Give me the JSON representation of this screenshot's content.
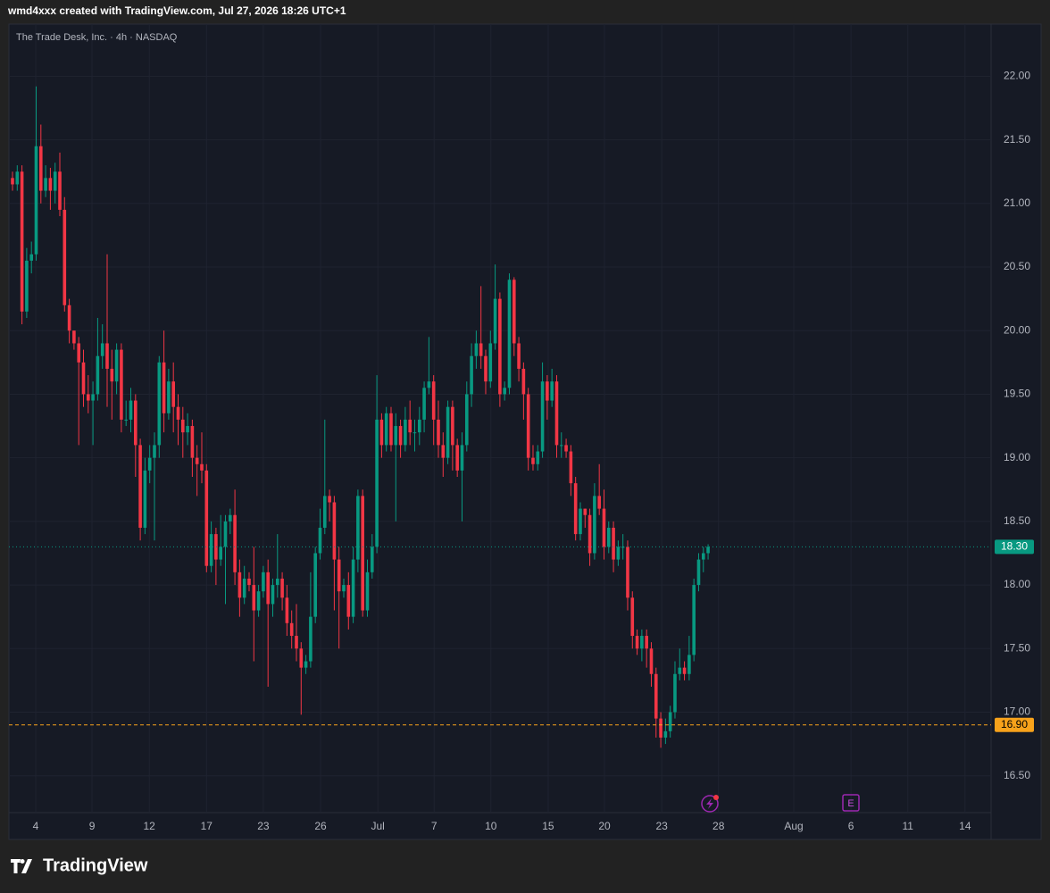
{
  "header": "wmd4xxx created with TradingView.com, Jul 27, 2026 18:26 UTC+1",
  "footer": "TradingView",
  "chart_data": {
    "type": "candlestick",
    "title": "The Trade Desk, Inc. · 4h · NASDAQ",
    "up_color": "#089981",
    "down_color": "#f23645",
    "grid": true,
    "open": [
      21.2,
      21.15,
      21.25,
      20.15,
      20.55,
      20.6,
      21.45,
      21.1,
      21.2,
      21.1,
      21.25,
      20.95,
      20.2,
      20.0,
      19.9,
      19.75,
      19.5,
      19.45,
      19.5,
      19.8,
      19.9,
      19.7,
      19.6,
      19.85,
      19.3,
      19.3,
      19.45,
      19.1,
      18.45,
      18.9,
      19.0,
      19.1,
      19.75,
      19.35,
      19.6,
      19.4,
      19.3,
      19.2,
      19.25,
      19.0,
      18.95,
      18.9,
      18.15,
      18.4,
      18.2,
      18.3,
      18.5,
      18.55,
      18.1,
      17.9,
      18.05,
      18.0,
      17.8,
      17.95,
      18.1,
      17.85,
      18.0,
      18.05,
      17.9,
      17.7,
      17.6,
      17.5,
      17.35,
      17.4,
      17.75,
      18.25,
      18.45,
      18.7,
      18.65,
      18.2,
      17.95,
      18.0,
      17.75,
      18.2,
      18.7,
      17.8,
      18.1,
      18.3,
      19.3,
      19.1,
      19.35,
      19.1,
      19.25,
      19.1,
      19.3,
      19.2,
      19.2,
      19.3,
      19.55,
      19.6,
      19.3,
      19.1,
      19.0,
      19.4,
      19.1,
      18.9,
      19.1,
      19.5,
      19.8,
      19.9,
      19.8,
      19.6,
      19.9,
      20.25,
      19.5,
      19.55,
      20.4,
      19.9,
      19.7,
      19.5,
      19.0,
      18.95,
      19.05,
      19.6,
      19.45,
      19.6,
      19.1,
      19.1,
      19.05,
      18.8,
      18.4,
      18.6,
      18.55,
      18.25,
      18.7,
      18.6,
      18.3,
      18.45,
      18.2,
      18.3,
      18.3,
      17.9,
      17.6,
      17.5,
      17.6,
      17.5,
      17.3,
      16.95,
      16.8,
      16.85,
      17.0,
      17.3,
      17.35,
      17.3,
      17.45,
      18.0,
      18.2,
      18.25
    ],
    "high": [
      21.25,
      21.3,
      21.3,
      20.65,
      20.7,
      21.92,
      21.62,
      21.3,
      21.28,
      21.32,
      21.4,
      21.05,
      20.25,
      20.0,
      19.95,
      19.85,
      19.65,
      19.6,
      20.1,
      20.05,
      20.6,
      19.85,
      19.9,
      19.9,
      19.45,
      19.55,
      19.5,
      19.15,
      19.0,
      19.1,
      19.2,
      19.8,
      20.0,
      19.7,
      19.75,
      19.5,
      19.4,
      19.35,
      19.3,
      19.1,
      19.2,
      18.95,
      18.5,
      18.45,
      18.55,
      18.55,
      18.6,
      18.75,
      18.2,
      18.15,
      18.1,
      18.3,
      18.0,
      18.15,
      18.2,
      18.05,
      18.4,
      18.1,
      18.0,
      17.8,
      17.85,
      17.55,
      17.45,
      18.1,
      18.3,
      18.6,
      19.3,
      18.75,
      18.7,
      18.3,
      18.05,
      18.1,
      18.3,
      18.75,
      18.75,
      18.2,
      18.4,
      19.65,
      19.35,
      19.4,
      19.4,
      19.35,
      19.3,
      19.4,
      19.45,
      19.3,
      19.4,
      19.6,
      19.95,
      19.65,
      19.45,
      19.2,
      19.45,
      19.45,
      19.15,
      19.2,
      19.6,
      19.9,
      20.0,
      20.35,
      19.85,
      20.0,
      20.52,
      20.3,
      19.6,
      20.45,
      20.42,
      19.95,
      19.75,
      19.55,
      19.1,
      19.1,
      19.75,
      19.65,
      19.7,
      19.65,
      19.2,
      19.15,
      19.1,
      18.85,
      18.65,
      18.6,
      18.6,
      18.8,
      18.95,
      18.75,
      18.5,
      18.5,
      18.35,
      18.4,
      18.35,
      17.95,
      17.65,
      17.65,
      17.65,
      17.55,
      17.35,
      17.0,
      16.95,
      17.05,
      17.4,
      17.5,
      17.4,
      17.6,
      18.05,
      18.25,
      18.3,
      18.32
    ],
    "low": [
      21.1,
      21.1,
      20.05,
      20.1,
      20.45,
      20.55,
      21.0,
      21.05,
      20.95,
      21.0,
      20.9,
      20.15,
      19.9,
      19.85,
      19.1,
      19.4,
      19.35,
      19.1,
      19.45,
      19.7,
      19.4,
      19.3,
      19.5,
      19.2,
      19.25,
      19.2,
      18.85,
      18.35,
      18.4,
      18.8,
      18.35,
      19.0,
      19.2,
      19.3,
      19.2,
      19.1,
      19.0,
      19.1,
      18.85,
      18.7,
      18.8,
      18.1,
      18.1,
      18.0,
      18.15,
      17.85,
      18.4,
      18.0,
      17.75,
      17.85,
      17.95,
      17.4,
      17.75,
      17.9,
      17.2,
      17.75,
      17.9,
      17.8,
      17.6,
      17.5,
      17.4,
      16.98,
      17.3,
      17.35,
      17.7,
      18.2,
      18.4,
      18.5,
      17.8,
      17.5,
      17.9,
      17.65,
      17.7,
      18.1,
      17.75,
      17.75,
      18.05,
      18.25,
      19.0,
      19.05,
      19.05,
      18.5,
      19.0,
      19.05,
      19.1,
      19.05,
      19.1,
      19.2,
      19.5,
      19.1,
      19.0,
      18.85,
      18.95,
      18.9,
      18.85,
      18.5,
      19.05,
      19.4,
      19.7,
      19.7,
      19.5,
      19.55,
      19.85,
      19.4,
      19.45,
      19.5,
      19.8,
      19.6,
      19.3,
      18.9,
      18.9,
      18.9,
      19.0,
      19.3,
      19.4,
      19.0,
      19.0,
      19.0,
      18.7,
      18.35,
      18.35,
      18.45,
      18.15,
      18.2,
      18.55,
      18.2,
      18.25,
      18.1,
      18.15,
      18.2,
      17.8,
      17.5,
      17.45,
      17.4,
      17.35,
      17.2,
      16.8,
      16.72,
      16.75,
      16.8,
      16.95,
      17.25,
      17.25,
      17.25,
      17.4,
      17.95,
      18.1,
      18.2
    ],
    "close": [
      21.15,
      21.25,
      20.15,
      20.55,
      20.6,
      21.45,
      21.1,
      21.2,
      21.1,
      21.25,
      20.95,
      20.2,
      20.0,
      19.9,
      19.75,
      19.5,
      19.45,
      19.5,
      19.8,
      19.9,
      19.7,
      19.6,
      19.85,
      19.3,
      19.3,
      19.45,
      19.1,
      18.45,
      18.9,
      19.0,
      19.1,
      19.75,
      19.35,
      19.6,
      19.4,
      19.3,
      19.2,
      19.25,
      19.0,
      18.95,
      18.9,
      18.15,
      18.4,
      18.2,
      18.3,
      18.5,
      18.55,
      18.1,
      17.9,
      18.05,
      18.0,
      17.8,
      17.95,
      18.1,
      17.85,
      18.0,
      18.05,
      17.9,
      17.7,
      17.6,
      17.5,
      17.35,
      17.4,
      17.75,
      18.25,
      18.45,
      18.7,
      18.65,
      18.2,
      17.95,
      18.0,
      17.75,
      18.2,
      18.7,
      17.8,
      18.1,
      18.3,
      19.3,
      19.1,
      19.35,
      19.1,
      19.25,
      19.1,
      19.3,
      19.2,
      19.2,
      19.3,
      19.55,
      19.6,
      19.3,
      19.1,
      19.0,
      19.4,
      19.1,
      18.9,
      19.1,
      19.5,
      19.8,
      19.9,
      19.8,
      19.6,
      19.9,
      20.25,
      19.5,
      19.55,
      20.4,
      19.9,
      19.7,
      19.5,
      19.0,
      18.95,
      19.05,
      19.6,
      19.45,
      19.6,
      19.1,
      19.1,
      19.05,
      18.8,
      18.4,
      18.6,
      18.55,
      18.25,
      18.7,
      18.6,
      18.3,
      18.45,
      18.2,
      18.3,
      18.3,
      17.9,
      17.6,
      17.5,
      17.6,
      17.5,
      17.3,
      16.95,
      16.8,
      16.85,
      17.0,
      17.3,
      17.35,
      17.3,
      17.45,
      18.0,
      18.2,
      18.25,
      18.3
    ],
    "xlim": [
      -0.755,
      206.8
    ],
    "xticks": [
      {
        "value": 4.9,
        "label": "4"
      },
      {
        "value": 16.8,
        "label": "9"
      },
      {
        "value": 28.9,
        "label": "12"
      },
      {
        "value": 41.0,
        "label": "17"
      },
      {
        "value": 53.0,
        "label": "23"
      },
      {
        "value": 65.1,
        "label": "26"
      },
      {
        "value": 77.2,
        "label": "Jul"
      },
      {
        "value": 89.1,
        "label": "7"
      },
      {
        "value": 101.1,
        "label": "10"
      },
      {
        "value": 113.2,
        "label": "15"
      },
      {
        "value": 125.1,
        "label": "20"
      },
      {
        "value": 137.2,
        "label": "23"
      },
      {
        "value": 149.2,
        "label": "28"
      },
      {
        "value": 165.1,
        "label": "Aug"
      },
      {
        "value": 177.2,
        "label": "6"
      },
      {
        "value": 189.2,
        "label": "11"
      },
      {
        "value": 201.3,
        "label": "14"
      }
    ],
    "ylim": [
      16.21,
      22.41
    ],
    "yticks": [
      {
        "value": 16.5,
        "label": "16.50"
      },
      {
        "value": 17,
        "label": "17.00"
      },
      {
        "value": 17.5,
        "label": "17.50"
      },
      {
        "value": 18,
        "label": "18.00"
      },
      {
        "value": 18.5,
        "label": "18.50"
      },
      {
        "value": 19,
        "label": "19.00"
      },
      {
        "value": 19.5,
        "label": "19.50"
      },
      {
        "value": 20,
        "label": "20.00"
      },
      {
        "value": 20.5,
        "label": "20.50"
      },
      {
        "value": 21,
        "label": "21.00"
      },
      {
        "value": 21.5,
        "label": "21.50"
      },
      {
        "value": 22,
        "label": "22.00"
      }
    ],
    "last_price": {
      "value": 18.3,
      "label": "18.30"
    },
    "price_line": {
      "value": 16.9,
      "label": "16.90",
      "color": "#f7a21b"
    },
    "earnings_marker": "E"
  }
}
